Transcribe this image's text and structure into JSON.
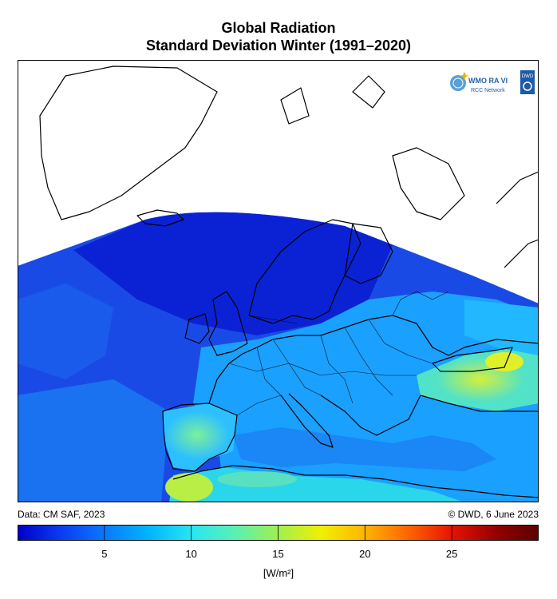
{
  "title_line1": "Global Radiation",
  "title_line2": "Standard Deviation Winter (1991–2020)",
  "logo": {
    "text1": "WMO RA VI",
    "text2": "RCC Network",
    "badge": "DWD"
  },
  "footer": {
    "data_source": "Data: CM SAF, 2023",
    "copyright": "© DWD, 6 June 2023"
  },
  "colorbar": {
    "min": 0,
    "max": 30,
    "ticks": [
      5,
      10,
      15,
      20,
      25
    ],
    "tick_labels": [
      "5",
      "10",
      "15",
      "20",
      "25"
    ],
    "unit": "[W/m²]",
    "colors": [
      "#0000c8",
      "#0a3cf0",
      "#0a78ff",
      "#00b4ff",
      "#28e6f0",
      "#5af0b4",
      "#a0f050",
      "#f0f000",
      "#ffb400",
      "#ff6400",
      "#e61400",
      "#960000",
      "#5a0000"
    ]
  },
  "colors": {
    "water_low": "#0a2ad8",
    "water_mid": "#1560f0",
    "land": "#19a0ff",
    "land_high": "#50e6c8",
    "hot": "#c8ee3c",
    "no_data": "#ffffff"
  }
}
